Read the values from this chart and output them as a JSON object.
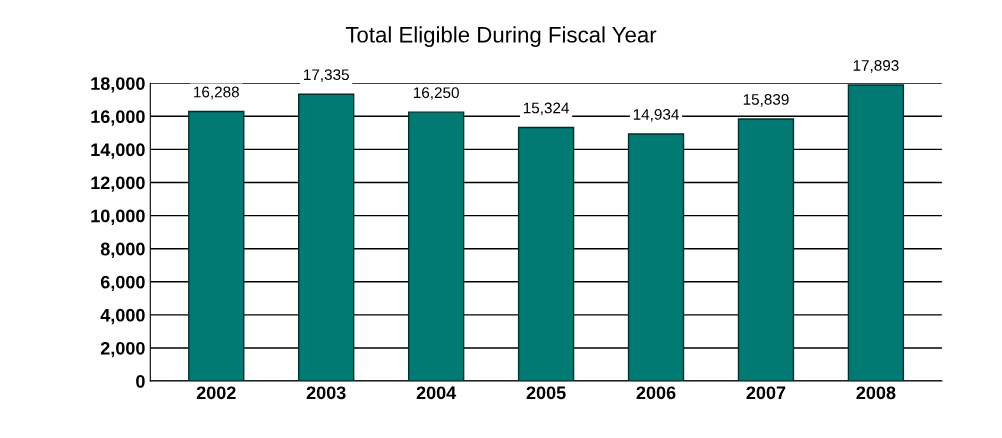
{
  "chart_data": {
    "type": "bar",
    "title": "Total Eligible During Fiscal Year",
    "categories": [
      "2002",
      "2003",
      "2004",
      "2005",
      "2006",
      "2007",
      "2008"
    ],
    "values": [
      16288,
      17335,
      16250,
      15324,
      14934,
      15839,
      17893
    ],
    "color": "#007a72",
    "ylim": [
      0,
      18000
    ],
    "yticks": [
      {
        "value": 0,
        "label": "0"
      },
      {
        "value": 2000,
        "label": "2,000"
      },
      {
        "value": 4000,
        "label": "4,000"
      },
      {
        "value": 6000,
        "label": "6,000"
      },
      {
        "value": 8000,
        "label": "8,000"
      },
      {
        "value": 10000,
        "label": "10,000"
      },
      {
        "value": 12000,
        "label": "12,000"
      },
      {
        "value": 14000,
        "label": "14,000"
      },
      {
        "value": 16000,
        "label": "16,000"
      },
      {
        "value": 18000,
        "label": "18,000"
      }
    ],
    "value_labels": [
      "16,288",
      "17,335",
      "16,250",
      "15,324",
      "14,934",
      "15,839",
      "17,893"
    ],
    "grid": "y"
  }
}
